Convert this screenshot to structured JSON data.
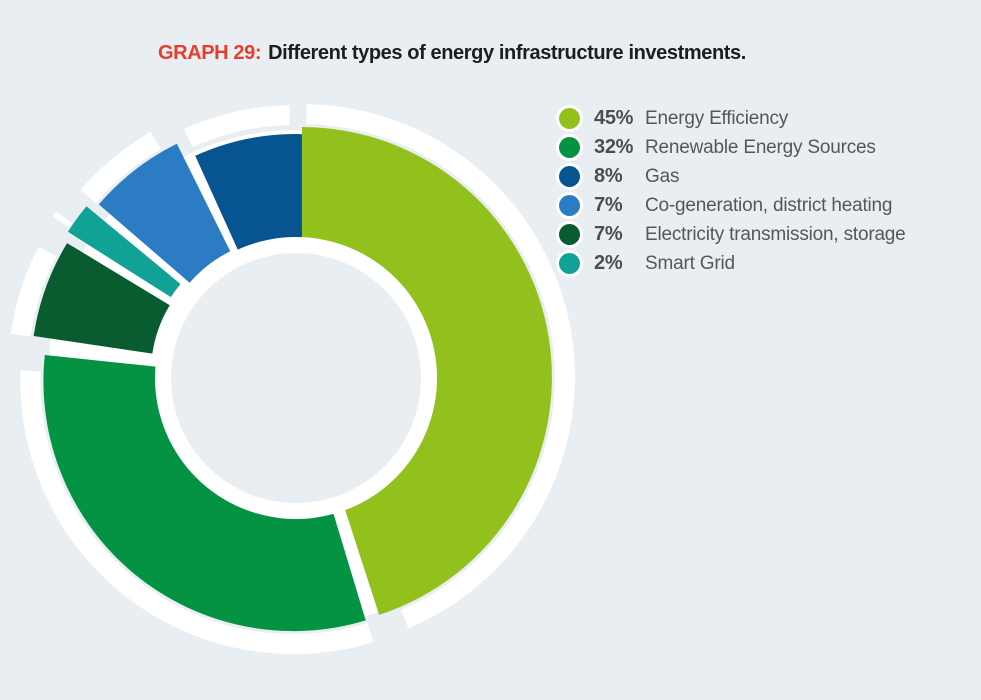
{
  "title": {
    "prefix": "GRAPH 29:",
    "text": "Different types of energy infrastructure investments."
  },
  "chart_data": {
    "type": "pie",
    "donut": true,
    "direction": "clockwise",
    "start_angle_deg": 0,
    "legend_position": "right",
    "title": "Different types of energy infrastructure investments.",
    "segments": [
      {
        "label": "Energy Efficiency",
        "pct_label": "45%",
        "value": 45,
        "color": "#92c11e"
      },
      {
        "label": "Renewable Energy Sources",
        "pct_label": "32%",
        "value": 32,
        "color": "#049342"
      },
      {
        "label": "Gas",
        "pct_label": "8%",
        "value": 8,
        "color": "#075590"
      },
      {
        "label": "Co-generation, district heating",
        "pct_label": "7%",
        "value": 7,
        "color": "#2b7cc3"
      },
      {
        "label": "Electricity transmission, storage",
        "pct_label": "7%",
        "value": 7,
        "color": "#085c30"
      },
      {
        "label": "Smart Grid",
        "pct_label": "2%",
        "value": 2,
        "color": "#10a296"
      }
    ],
    "wheel_clockwise_order": [
      0,
      1,
      4,
      5,
      3,
      2
    ]
  },
  "colors": {
    "background": "#e9eef2",
    "title_prefix": "#e73e2c",
    "title_text": "#1d1d1b",
    "legend_value": "#4d4d4d",
    "legend_label": "#575756",
    "ring": "#ffffff"
  }
}
